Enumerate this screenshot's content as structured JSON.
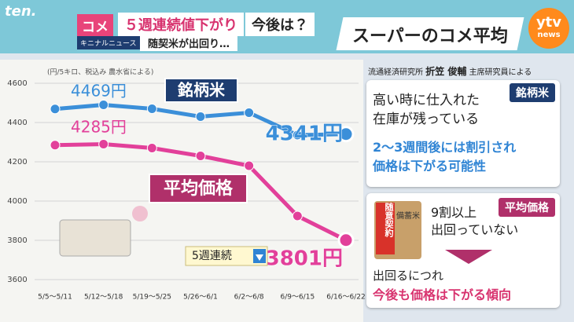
{
  "header": {
    "logo": "ten.",
    "tag": "コメ",
    "headline": "５週連続値下がり",
    "question": "今後は？",
    "corner": "キニナルニュース",
    "subhead": "随契米が出回り…"
  },
  "panel_title": "スーパーのコメ平均",
  "network": {
    "name": "ytv",
    "sub": "news"
  },
  "chart_data": {
    "type": "line",
    "note": "(円/5キロ、税込み 農水省による)",
    "categories": [
      "5/5～5/11",
      "5/12～5/18",
      "5/19～5/25",
      "5/26～6/1",
      "6/2～6/8",
      "6/9～6/15",
      "6/16～6/22"
    ],
    "series": [
      {
        "name": "銘柄米",
        "color": "#3b8fd9",
        "values": [
          4469,
          4490,
          4470,
          4430,
          4450,
          4336,
          4341
        ],
        "value_labels": [
          "4469円",
          null,
          null,
          null,
          null,
          null,
          "4341円"
        ]
      },
      {
        "name": "平均価格",
        "color": "#e2409a",
        "values": [
          4285,
          4290,
          4270,
          4230,
          4180,
          3924,
          3801
        ],
        "value_labels": [
          "4285円",
          null,
          null,
          null,
          null,
          null,
          "3801円"
        ]
      }
    ],
    "ylim": [
      3600,
      4600
    ],
    "yticks": [
      3600,
      3800,
      4000,
      4200,
      4400,
      4600
    ],
    "grid": true,
    "annotation": "5週連続"
  },
  "source": {
    "org": "流通経済研究所",
    "name": "折笠 俊輔",
    "role": "主席研究員による"
  },
  "brand_box": {
    "tag": "銘柄米",
    "lines": [
      "高い時に仕入れた",
      "在庫が残っている"
    ],
    "outlook": [
      "2～3週間後には割引され",
      "価格は下がる可能性"
    ]
  },
  "average_box": {
    "tag": "平均価格",
    "bag": {
      "label": "随意契約",
      "print": "備蓄米"
    },
    "lines": [
      "9割以上",
      "出回っていない"
    ],
    "then": "出回るにつれ",
    "outlook": "今後も価格は下がる傾向"
  }
}
